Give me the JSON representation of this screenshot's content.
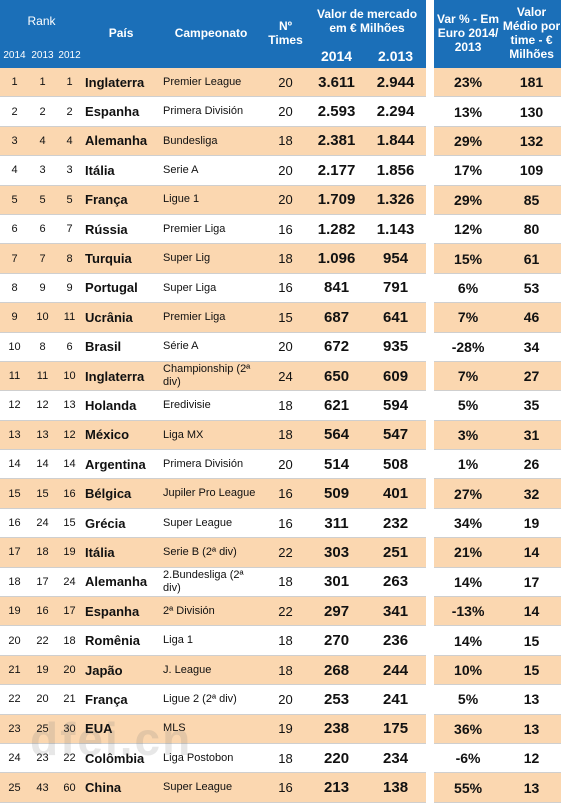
{
  "header": {
    "rank": "Rank",
    "year_2014": "2014",
    "year_2013": "2013",
    "year_2012": "2012",
    "pais": "País",
    "campeonato": "Campeonato",
    "n_times": "Nº Times",
    "valor_mercado": "Valor de mercado em € Milhões",
    "val_2014": "2014",
    "val_2013": "2.013",
    "var": "Var % - Em Euro 2014/ 2013",
    "medio": "Valor Médio por time - € Milhões"
  },
  "rows": [
    {
      "r14": "1",
      "r13": "1",
      "r12": "1",
      "pais": "Inglaterra",
      "camp": "Premier League",
      "times": "20",
      "v14": "3.611",
      "v13": "2.944",
      "var": "23%",
      "med": "181"
    },
    {
      "r14": "2",
      "r13": "2",
      "r12": "2",
      "pais": "Espanha",
      "camp": "Primera División",
      "times": "20",
      "v14": "2.593",
      "v13": "2.294",
      "var": "13%",
      "med": "130"
    },
    {
      "r14": "3",
      "r13": "4",
      "r12": "4",
      "pais": "Alemanha",
      "camp": "Bundesliga",
      "times": "18",
      "v14": "2.381",
      "v13": "1.844",
      "var": "29%",
      "med": "132"
    },
    {
      "r14": "4",
      "r13": "3",
      "r12": "3",
      "pais": "Itália",
      "camp": "Serie A",
      "times": "20",
      "v14": "2.177",
      "v13": "1.856",
      "var": "17%",
      "med": "109"
    },
    {
      "r14": "5",
      "r13": "5",
      "r12": "5",
      "pais": "França",
      "camp": "Ligue 1",
      "times": "20",
      "v14": "1.709",
      "v13": "1.326",
      "var": "29%",
      "med": "85"
    },
    {
      "r14": "6",
      "r13": "6",
      "r12": "7",
      "pais": "Rússia",
      "camp": "Premier Liga",
      "times": "16",
      "v14": "1.282",
      "v13": "1.143",
      "var": "12%",
      "med": "80"
    },
    {
      "r14": "7",
      "r13": "7",
      "r12": "8",
      "pais": "Turquia",
      "camp": "Super Lig",
      "times": "18",
      "v14": "1.096",
      "v13": "954",
      "var": "15%",
      "med": "61"
    },
    {
      "r14": "8",
      "r13": "9",
      "r12": "9",
      "pais": "Portugal",
      "camp": "Super Liga",
      "times": "16",
      "v14": "841",
      "v13": "791",
      "var": "6%",
      "med": "53"
    },
    {
      "r14": "9",
      "r13": "10",
      "r12": "11",
      "pais": "Ucrânia",
      "camp": "Premier Liga",
      "times": "15",
      "v14": "687",
      "v13": "641",
      "var": "7%",
      "med": "46"
    },
    {
      "r14": "10",
      "r13": "8",
      "r12": "6",
      "pais": "Brasil",
      "camp": "Série A",
      "times": "20",
      "v14": "672",
      "v13": "935",
      "var": "-28%",
      "med": "34"
    },
    {
      "r14": "11",
      "r13": "11",
      "r12": "10",
      "pais": "Inglaterra",
      "camp": "Championship (2ª div)",
      "times": "24",
      "v14": "650",
      "v13": "609",
      "var": "7%",
      "med": "27"
    },
    {
      "r14": "12",
      "r13": "12",
      "r12": "13",
      "pais": "Holanda",
      "camp": "Eredivisie",
      "times": "18",
      "v14": "621",
      "v13": "594",
      "var": "5%",
      "med": "35"
    },
    {
      "r14": "13",
      "r13": "13",
      "r12": "12",
      "pais": "México",
      "camp": "Liga MX",
      "times": "18",
      "v14": "564",
      "v13": "547",
      "var": "3%",
      "med": "31"
    },
    {
      "r14": "14",
      "r13": "14",
      "r12": "14",
      "pais": "Argentina",
      "camp": "Primera División",
      "times": "20",
      "v14": "514",
      "v13": "508",
      "var": "1%",
      "med": "26"
    },
    {
      "r14": "15",
      "r13": "15",
      "r12": "16",
      "pais": "Bélgica",
      "camp": "Jupiler Pro League",
      "times": "16",
      "v14": "509",
      "v13": "401",
      "var": "27%",
      "med": "32"
    },
    {
      "r14": "16",
      "r13": "24",
      "r12": "15",
      "pais": "Grécia",
      "camp": "Super League",
      "times": "16",
      "v14": "311",
      "v13": "232",
      "var": "34%",
      "med": "19"
    },
    {
      "r14": "17",
      "r13": "18",
      "r12": "19",
      "pais": "Itália",
      "camp": "Serie B (2ª div)",
      "times": "22",
      "v14": "303",
      "v13": "251",
      "var": "21%",
      "med": "14"
    },
    {
      "r14": "18",
      "r13": "17",
      "r12": "24",
      "pais": "Alemanha",
      "camp": "2.Bundesliga (2ª div)",
      "times": "18",
      "v14": "301",
      "v13": "263",
      "var": "14%",
      "med": "17"
    },
    {
      "r14": "19",
      "r13": "16",
      "r12": "17",
      "pais": "Espanha",
      "camp": "2ª División",
      "times": "22",
      "v14": "297",
      "v13": "341",
      "var": "-13%",
      "med": "14"
    },
    {
      "r14": "20",
      "r13": "22",
      "r12": "18",
      "pais": "Romênia",
      "camp": "Liga 1",
      "times": "18",
      "v14": "270",
      "v13": "236",
      "var": "14%",
      "med": "15"
    },
    {
      "r14": "21",
      "r13": "19",
      "r12": "20",
      "pais": "Japão",
      "camp": "J. League",
      "times": "18",
      "v14": "268",
      "v13": "244",
      "var": "10%",
      "med": "15"
    },
    {
      "r14": "22",
      "r13": "20",
      "r12": "21",
      "pais": "França",
      "camp": "Ligue 2 (2ª div)",
      "times": "20",
      "v14": "253",
      "v13": "241",
      "var": "5%",
      "med": "13"
    },
    {
      "r14": "23",
      "r13": "25",
      "r12": "30",
      "pais": "EUA",
      "camp": "MLS",
      "times": "19",
      "v14": "238",
      "v13": "175",
      "var": "36%",
      "med": "13"
    },
    {
      "r14": "24",
      "r13": "23",
      "r12": "22",
      "pais": "Colômbia",
      "camp": "Liga Postobon",
      "times": "18",
      "v14": "220",
      "v13": "234",
      "var": "-6%",
      "med": "12"
    },
    {
      "r14": "25",
      "r13": "43",
      "r12": "60",
      "pais": "China",
      "camp": "Super League",
      "times": "16",
      "v14": "213",
      "v13": "138",
      "var": "55%",
      "med": "13"
    }
  ],
  "watermark": "dfei.cn",
  "colors": {
    "header_bg": "#1b6fb8",
    "row_alt": "#fbd7b0"
  }
}
